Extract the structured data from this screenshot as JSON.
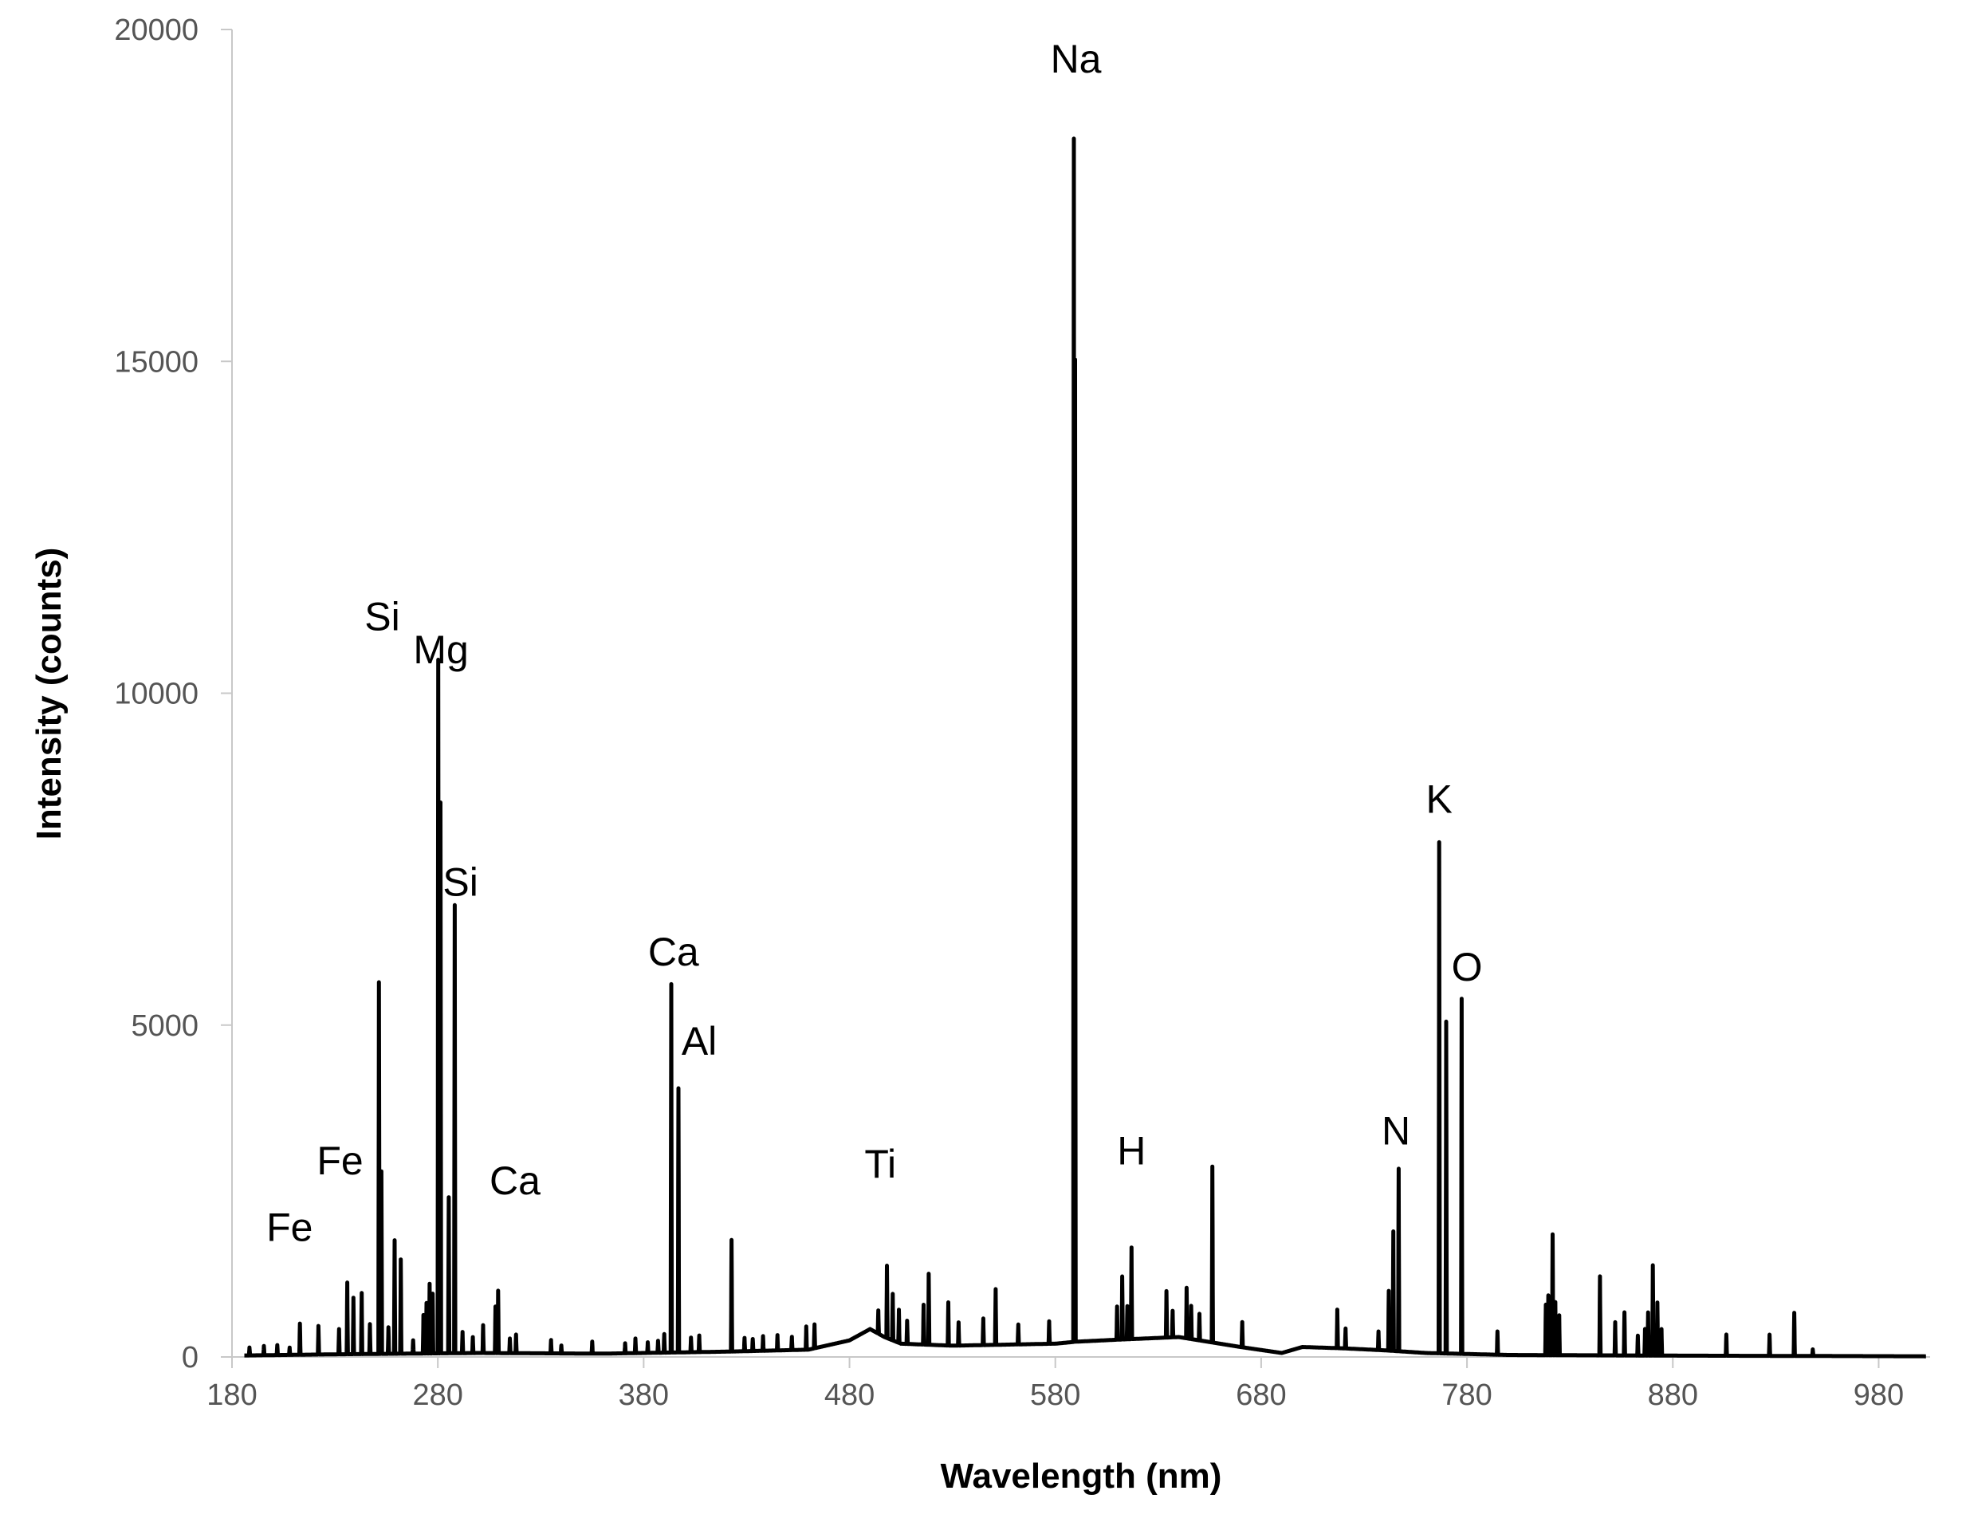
{
  "chart_data": {
    "type": "line",
    "title": "",
    "xlabel": "Wavelength (nm)",
    "ylabel": "Intensity (counts)",
    "xlim": [
      180,
      1005
    ],
    "ylim": [
      0,
      20000
    ],
    "x_ticks": [
      180,
      280,
      380,
      480,
      580,
      680,
      780,
      880,
      980
    ],
    "y_ticks": [
      0,
      5000,
      10000,
      15000,
      20000
    ],
    "x_tick_labels": [
      "180",
      "280",
      "380",
      "480",
      "580",
      "680",
      "780",
      "880",
      "980"
    ],
    "y_tick_labels": [
      "0",
      "5000",
      "10000",
      "15000",
      "20000"
    ],
    "grid": false,
    "legend": "none",
    "line_color": "#000000",
    "baseline": [
      [
        180,
        20
      ],
      [
        230,
        40
      ],
      [
        300,
        60
      ],
      [
        360,
        50
      ],
      [
        420,
        80
      ],
      [
        460,
        110
      ],
      [
        480,
        250
      ],
      [
        490,
        420
      ],
      [
        497,
        300
      ],
      [
        505,
        200
      ],
      [
        530,
        170
      ],
      [
        580,
        200
      ],
      [
        590,
        230
      ],
      [
        610,
        260
      ],
      [
        640,
        300
      ],
      [
        650,
        250
      ],
      [
        670,
        150
      ],
      [
        690,
        60
      ],
      [
        700,
        150
      ],
      [
        720,
        130
      ],
      [
        740,
        100
      ],
      [
        760,
        60
      ],
      [
        800,
        30
      ],
      [
        880,
        20
      ],
      [
        1005,
        10
      ]
    ],
    "peaks": [
      [
        188.5,
        120
      ],
      [
        195.5,
        140
      ],
      [
        202,
        150
      ],
      [
        208,
        110
      ],
      [
        213,
        470
      ],
      [
        222,
        430
      ],
      [
        232,
        380
      ],
      [
        236,
        1080
      ],
      [
        239,
        850
      ],
      [
        243,
        920
      ],
      [
        247,
        450
      ],
      [
        251.4,
        5600
      ],
      [
        252.6,
        2750
      ],
      [
        256,
        400
      ],
      [
        259,
        1710
      ],
      [
        262,
        1420
      ],
      [
        268,
        200
      ],
      [
        273,
        580
      ],
      [
        274.5,
        760
      ],
      [
        276,
        1050
      ],
      [
        277.5,
        900
      ],
      [
        280.2,
        10450
      ],
      [
        281.3,
        8300
      ],
      [
        285.3,
        2350
      ],
      [
        288.2,
        6750
      ],
      [
        292,
        320
      ],
      [
        297,
        240
      ],
      [
        302,
        420
      ],
      [
        308,
        700
      ],
      [
        309.3,
        940
      ],
      [
        315,
        220
      ],
      [
        318,
        280
      ],
      [
        335,
        200
      ],
      [
        340,
        120
      ],
      [
        355,
        180
      ],
      [
        371,
        150
      ],
      [
        376,
        220
      ],
      [
        382,
        160
      ],
      [
        387,
        180
      ],
      [
        390,
        280
      ],
      [
        393.4,
        5550
      ],
      [
        396.9,
        3980
      ],
      [
        403,
        220
      ],
      [
        407,
        250
      ],
      [
        422.7,
        1680
      ],
      [
        429,
        200
      ],
      [
        433,
        180
      ],
      [
        438,
        220
      ],
      [
        445,
        230
      ],
      [
        452,
        200
      ],
      [
        459,
        350
      ],
      [
        463,
        360
      ],
      [
        494,
        350
      ],
      [
        498.2,
        1090
      ],
      [
        501,
        700
      ],
      [
        504,
        500
      ],
      [
        508,
        350
      ],
      [
        516,
        600
      ],
      [
        518.5,
        1070
      ],
      [
        528,
        650
      ],
      [
        533,
        350
      ],
      [
        545,
        400
      ],
      [
        551,
        840
      ],
      [
        562,
        300
      ],
      [
        577,
        340
      ],
      [
        588.99,
        18800
      ],
      [
        589.6,
        14800
      ],
      [
        610,
        500
      ],
      [
        612.5,
        950
      ],
      [
        615,
        500
      ],
      [
        617,
        1380
      ],
      [
        634,
        700
      ],
      [
        637,
        400
      ],
      [
        643.8,
        760
      ],
      [
        646,
        500
      ],
      [
        650,
        400
      ],
      [
        656.3,
        2650
      ],
      [
        670.8,
        380
      ],
      [
        717,
        580
      ],
      [
        721,
        300
      ],
      [
        737,
        280
      ],
      [
        742,
        900
      ],
      [
        744.2,
        1800
      ],
      [
        746.8,
        2750
      ],
      [
        766.5,
        7700
      ],
      [
        769.9,
        5000
      ],
      [
        777.4,
        5350
      ],
      [
        794.8,
        350
      ],
      [
        818.3,
        760
      ],
      [
        819.5,
        900
      ],
      [
        821.6,
        1820
      ],
      [
        822.9,
        800
      ],
      [
        824.8,
        600
      ],
      [
        844.6,
        1190
      ],
      [
        852,
        500
      ],
      [
        856.5,
        650
      ],
      [
        863,
        300
      ],
      [
        866.5,
        400
      ],
      [
        868,
        650
      ],
      [
        870.3,
        1360
      ],
      [
        872.5,
        800
      ],
      [
        874.5,
        400
      ],
      [
        906,
        320
      ],
      [
        927,
        320
      ],
      [
        939,
        650
      ],
      [
        948,
        100
      ]
    ],
    "annotations": [
      {
        "text": "Fe",
        "x": 208,
        "y": 1750
      },
      {
        "text": "Fe",
        "x": 232.5,
        "y": 2750
      },
      {
        "text": "Si",
        "x": 253,
        "y": 10950
      },
      {
        "text": "Mg",
        "x": 281.5,
        "y": 10450
      },
      {
        "text": "Si",
        "x": 291,
        "y": 6950
      },
      {
        "text": "Ca",
        "x": 317.5,
        "y": 2450
      },
      {
        "text": "Ca",
        "x": 394.5,
        "y": 5900
      },
      {
        "text": "Al",
        "x": 407,
        "y": 4550
      },
      {
        "text": "Ti",
        "x": 495,
        "y": 2700
      },
      {
        "text": "Na",
        "x": 590,
        "y": 19350
      },
      {
        "text": "H",
        "x": 617,
        "y": 2900
      },
      {
        "text": "N",
        "x": 745.5,
        "y": 3200
      },
      {
        "text": "K",
        "x": 766.5,
        "y": 8200
      },
      {
        "text": "O",
        "x": 780,
        "y": 5670
      }
    ]
  }
}
